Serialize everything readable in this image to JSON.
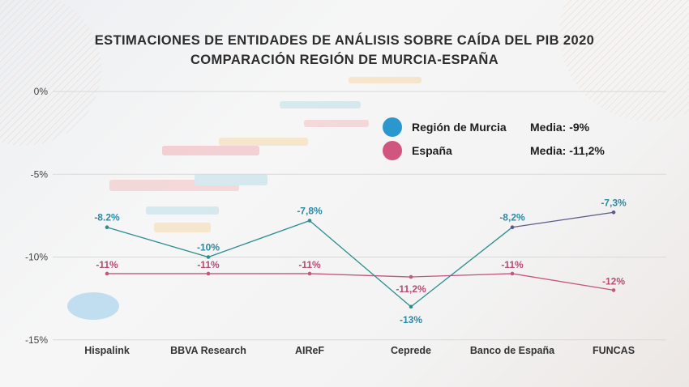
{
  "title_line1": "ESTIMACIONES DE ENTIDADES DE ANÁLISIS SOBRE CAÍDA DEL PIB 2020",
  "title_line2": "COMPARACIÓN REGIÓN DE MURCIA-ESPAÑA",
  "legend": {
    "murcia": {
      "name": "Región de Murcia",
      "mean": "Media: -9%"
    },
    "espana": {
      "name": "España",
      "mean": "Media: -11,2%"
    }
  },
  "colors": {
    "murcia_dot": "#2b97cf",
    "espana_dot": "#d1567f",
    "murcia_line": "#2e8e8e",
    "murcia_line_end": "#5a5a88",
    "espana_line": "#c2577f",
    "murcia_label": "#2a8aa6",
    "espana_label": "#b84d75"
  },
  "chart_data": {
    "type": "line",
    "title": "ESTIMACIONES DE ENTIDADES DE ANÁLISIS SOBRE CAÍDA DEL PIB 2020 COMPARACIÓN REGIÓN DE MURCIA-ESPAÑA",
    "categories": [
      "Hispalink",
      "BBVA Research",
      "AIReF",
      "Ceprede",
      "Banco de España",
      "FUNCAS"
    ],
    "yticks": [
      "0%",
      "-5%",
      "-10%",
      "-15%"
    ],
    "ytick_values": [
      0,
      -5,
      -10,
      -15
    ],
    "ylim": [
      -15,
      0
    ],
    "grid": true,
    "legend_position": "top-right",
    "series": [
      {
        "name": "Región de Murcia",
        "values": [
          -8.2,
          -10,
          -7.8,
          -13,
          -8.2,
          -7.3
        ],
        "labels": [
          "-8.2%",
          "-10%",
          "-7,8%",
          "-13%",
          "-8,2%",
          "-7,3%"
        ]
      },
      {
        "name": "España",
        "values": [
          -11,
          -11,
          -11,
          -11.2,
          -11,
          -12
        ],
        "labels": [
          "-11%",
          "-11%",
          "-11%",
          "-11,2%",
          "-11%",
          "-12%"
        ]
      }
    ]
  }
}
